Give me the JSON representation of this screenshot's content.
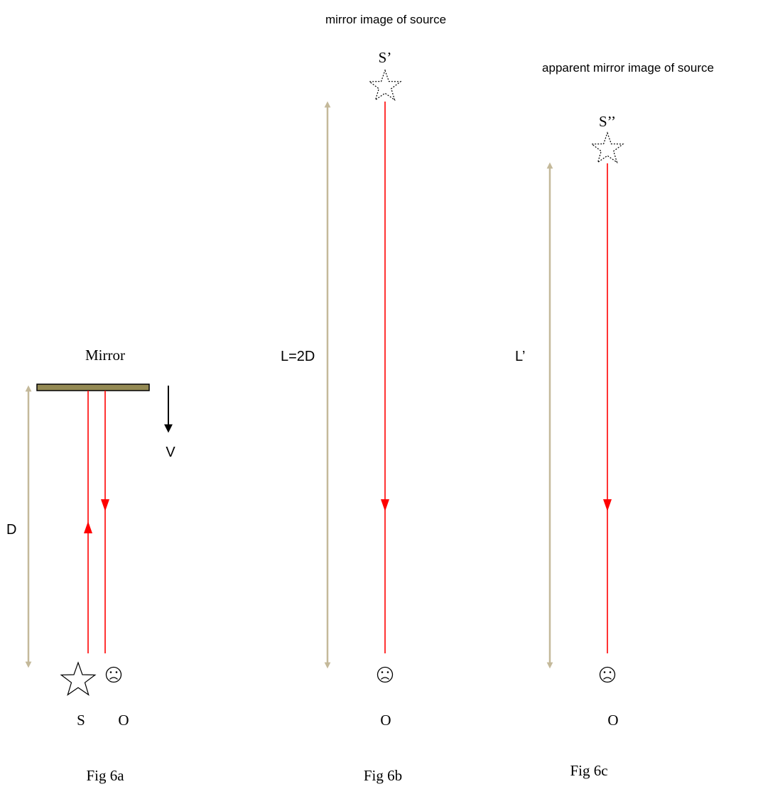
{
  "labels": {
    "fig6b_caption": "mirror image of source",
    "fig6c_caption": "apparent mirror image of source",
    "image_s_prime": "S’",
    "image_s_double_prime": "S’’",
    "mirror": "Mirror",
    "velocity": "V",
    "distance": "D",
    "path_length": "L=2D",
    "apparent_path_length": "L’",
    "source": "S",
    "observer_a": "O",
    "observer_b": "O",
    "observer_c": "O",
    "fig_a": "Fig 6a",
    "fig_b": "Fig 6b",
    "fig_c": "Fig 6c"
  },
  "colors": {
    "ray": "#ff0000",
    "dimension_arrow": "#c4b99a",
    "mirror_fill": "#948a54",
    "ink": "#000000"
  },
  "icons": {
    "source": "star-icon",
    "source_image": "dotted-star-icon",
    "observer": "frowning-face-icon"
  }
}
